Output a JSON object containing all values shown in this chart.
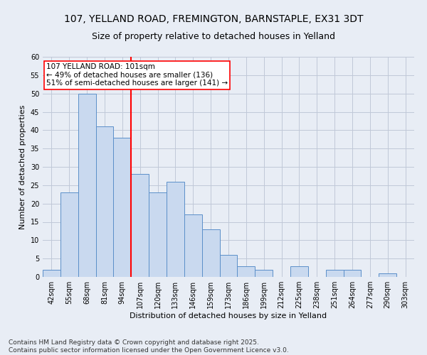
{
  "title_line1": "107, YELLAND ROAD, FREMINGTON, BARNSTAPLE, EX31 3DT",
  "title_line2": "Size of property relative to detached houses in Yelland",
  "xlabel": "Distribution of detached houses by size in Yelland",
  "ylabel": "Number of detached properties",
  "categories": [
    "42sqm",
    "55sqm",
    "68sqm",
    "81sqm",
    "94sqm",
    "107sqm",
    "120sqm",
    "133sqm",
    "146sqm",
    "159sqm",
    "173sqm",
    "186sqm",
    "199sqm",
    "212sqm",
    "225sqm",
    "238sqm",
    "251sqm",
    "264sqm",
    "277sqm",
    "290sqm",
    "303sqm"
  ],
  "values": [
    2,
    23,
    50,
    41,
    38,
    28,
    23,
    26,
    17,
    13,
    6,
    3,
    2,
    0,
    3,
    0,
    2,
    2,
    0,
    1,
    0
  ],
  "bar_color": "#c9d9ef",
  "bar_edge_color": "#5b8fc9",
  "bar_width": 1.0,
  "vline_color": "red",
  "annotation_text": "107 YELLAND ROAD: 101sqm\n← 49% of detached houses are smaller (136)\n51% of semi-detached houses are larger (141) →",
  "annotation_box_color": "white",
  "annotation_box_edge_color": "red",
  "ylim": [
    0,
    60
  ],
  "yticks": [
    0,
    5,
    10,
    15,
    20,
    25,
    30,
    35,
    40,
    45,
    50,
    55,
    60
  ],
  "grid_color": "#c0c8d8",
  "background_color": "#e8edf5",
  "footer_text": "Contains HM Land Registry data © Crown copyright and database right 2025.\nContains public sector information licensed under the Open Government Licence v3.0.",
  "title_fontsize": 10,
  "subtitle_fontsize": 9,
  "axis_fontsize": 8,
  "tick_fontsize": 7,
  "annotation_fontsize": 7.5,
  "footer_fontsize": 6.5
}
